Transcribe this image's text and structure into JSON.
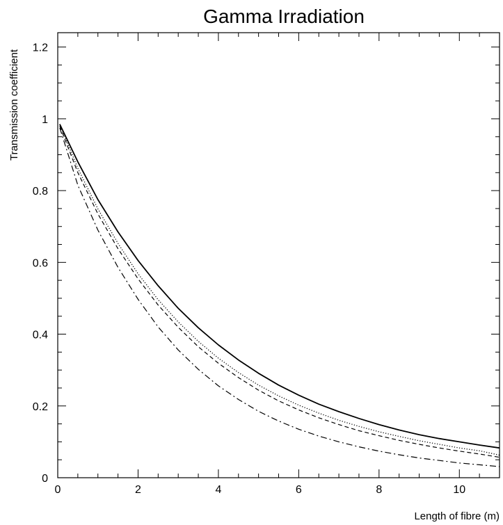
{
  "chart_data": {
    "type": "line",
    "title": "Gamma Irradiation",
    "xlabel": "Length of fibre (m)",
    "ylabel": "Transmission coefficient",
    "xlim": [
      0,
      11
    ],
    "ylim": [
      0,
      1.24
    ],
    "x_ticks": [
      0,
      2,
      4,
      6,
      8,
      10
    ],
    "x_tick_labels": [
      "0",
      "2",
      "4",
      "6",
      "8",
      "10"
    ],
    "y_ticks": [
      0,
      0.2,
      0.4,
      0.6,
      0.8,
      1.0,
      1.2
    ],
    "y_tick_labels": [
      "0",
      "0.2",
      "0.4",
      "0.6",
      "0.8",
      "1",
      "1.2"
    ],
    "grid": false,
    "legend": "none",
    "series": [
      {
        "style": "solid",
        "color": "#000000",
        "x": [
          0.05,
          0.5,
          1,
          1.5,
          2,
          2.5,
          3,
          3.5,
          4,
          4.5,
          5,
          5.5,
          6,
          6.5,
          7,
          7.5,
          8,
          8.5,
          9,
          9.5,
          10,
          10.5,
          11
        ],
        "y": [
          0.985,
          0.88,
          0.775,
          0.685,
          0.605,
          0.535,
          0.472,
          0.418,
          0.37,
          0.328,
          0.291,
          0.258,
          0.23,
          0.205,
          0.184,
          0.165,
          0.148,
          0.133,
          0.12,
          0.109,
          0.1,
          0.091,
          0.083
        ]
      },
      {
        "style": "dotted",
        "color": "#000000",
        "x": [
          0.05,
          0.5,
          1,
          1.5,
          2,
          2.5,
          3,
          3.5,
          4,
          4.5,
          5,
          5.5,
          6,
          6.5,
          7,
          7.5,
          8,
          8.5,
          9,
          9.5,
          10,
          10.5,
          11
        ],
        "y": [
          0.985,
          0.862,
          0.749,
          0.653,
          0.568,
          0.496,
          0.434,
          0.38,
          0.333,
          0.293,
          0.258,
          0.228,
          0.202,
          0.18,
          0.16,
          0.143,
          0.128,
          0.115,
          0.103,
          0.093,
          0.083,
          0.075,
          0.063
        ]
      },
      {
        "style": "dashed",
        "color": "#000000",
        "x": [
          0.05,
          0.5,
          1,
          1.5,
          2,
          2.5,
          3,
          3.5,
          4,
          4.5,
          5,
          5.5,
          6,
          6.5,
          7,
          7.5,
          8,
          8.5,
          9,
          9.5,
          10,
          10.5,
          11
        ],
        "y": [
          0.98,
          0.85,
          0.735,
          0.638,
          0.554,
          0.481,
          0.419,
          0.365,
          0.319,
          0.279,
          0.244,
          0.214,
          0.189,
          0.167,
          0.148,
          0.131,
          0.117,
          0.104,
          0.093,
          0.083,
          0.074,
          0.066,
          0.057
        ]
      },
      {
        "style": "dash-dot",
        "color": "#000000",
        "x": [
          0.05,
          0.5,
          1,
          1.5,
          2,
          2.5,
          3,
          3.5,
          4,
          4.5,
          5,
          5.5,
          6,
          6.5,
          7,
          7.5,
          8,
          8.5,
          9,
          9.5,
          10,
          10.5,
          11
        ],
        "y": [
          0.975,
          0.815,
          0.69,
          0.586,
          0.497,
          0.42,
          0.356,
          0.302,
          0.256,
          0.218,
          0.185,
          0.158,
          0.135,
          0.116,
          0.1,
          0.086,
          0.074,
          0.064,
          0.055,
          0.048,
          0.041,
          0.036,
          0.031
        ]
      }
    ]
  }
}
